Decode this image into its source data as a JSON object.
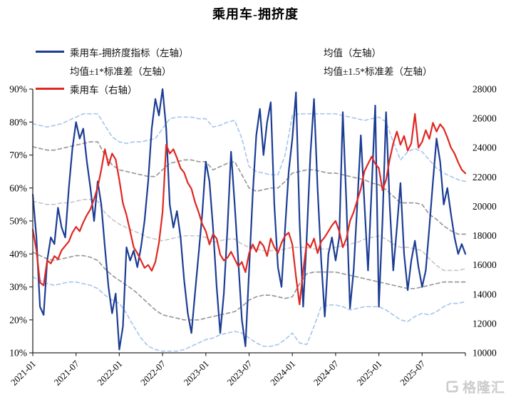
{
  "title": "乘用车-拥挤度",
  "watermark": {
    "brand": "格隆汇",
    "icon": "gelonghui-logo"
  },
  "colors": {
    "navy": "#1c3d94",
    "red": "#e02722",
    "gray": "#999999",
    "lightgray": "#c9c9c9",
    "lightblue": "#aac7ec",
    "axis": "#2b2b2b",
    "watermark": "#cccccc"
  },
  "chart_data": {
    "type": "line",
    "title": "乘用车-拥挤度",
    "x_range_months": [
      0,
      60
    ],
    "x_start_label": "2021-01",
    "x_ticks": {
      "label_months": [
        0,
        6,
        12,
        18,
        24,
        30,
        36,
        42,
        48,
        54
      ],
      "labels": [
        "2021-01",
        "2021-07",
        "2022-01",
        "2022-07",
        "2023-01",
        "2023-07",
        "2024-01",
        "2024-07",
        "2025-01",
        "2025-07"
      ],
      "tick_months": [
        0,
        6,
        12,
        18,
        24,
        30,
        36,
        42,
        48,
        54,
        60
      ]
    },
    "left_axis": {
      "min": 10,
      "max": 90,
      "tick_values": [
        10,
        20,
        30,
        40,
        50,
        60,
        70,
        80,
        90
      ],
      "tick_labels": [
        "10%",
        "20%",
        "30%",
        "40%",
        "50%",
        "60%",
        "70%",
        "80%",
        "90%"
      ]
    },
    "right_axis": {
      "min": 10000,
      "max": 28000,
      "tick_values": [
        10000,
        12000,
        14000,
        16000,
        18000,
        20000,
        22000,
        24000,
        26000,
        28000
      ],
      "tick_labels": [
        "10000",
        "12000",
        "14000",
        "16000",
        "18000",
        "20000",
        "22000",
        "24000",
        "26000",
        "28000"
      ]
    },
    "legend": [
      {
        "id": "indicator",
        "label": "乘用车-拥挤度指标（左轴）",
        "color": "navy",
        "style": "solid"
      },
      {
        "id": "mean",
        "label": "均值（左轴）",
        "color": "lightgray",
        "style": "dashed"
      },
      {
        "id": "band1",
        "label": "均值±1*标准差（左轴）",
        "color": "gray",
        "style": "dashed"
      },
      {
        "id": "band15",
        "label": "均值±1.5*标准差（左轴）",
        "color": "lightblue",
        "style": "dashed"
      },
      {
        "id": "vehicle",
        "label": "乘用车（右轴）",
        "color": "red",
        "style": "solid"
      }
    ],
    "series": [
      {
        "id": "upper15",
        "name": "均值+1.5*标准差（左轴）",
        "axis": "left",
        "color": "lightblue",
        "dash": true,
        "width": 1.7,
        "values": [
          79.5,
          79,
          78.5,
          79,
          79.5,
          80.5,
          81.5,
          82.5,
          82.5,
          82.5,
          79,
          75.5,
          74,
          73.5,
          74,
          74,
          74.5,
          75,
          78,
          81,
          81.5,
          81.5,
          81.5,
          81,
          81,
          78.5,
          79,
          80,
          80.5,
          75,
          66.5,
          65,
          64.5,
          64,
          64,
          70,
          82,
          82.5,
          82.5,
          82.5,
          82.5,
          82.5,
          82.5,
          82,
          81.5,
          81,
          80.5,
          81,
          81.5,
          80,
          74,
          68.5,
          71,
          72,
          71,
          68.5,
          66,
          64.5,
          63.5,
          62.5,
          62
        ]
      },
      {
        "id": "lower15",
        "name": "均值-1.5*标准差（左轴）",
        "axis": "left",
        "color": "lightblue",
        "dash": true,
        "width": 1.7,
        "values": [
          33,
          32,
          31,
          30.5,
          31,
          31.5,
          31.5,
          31,
          30.5,
          29.5,
          27.5,
          26,
          25,
          22,
          18,
          14.5,
          12,
          11,
          10.5,
          10.5,
          10.5,
          11,
          12,
          13,
          14,
          14.5,
          15.5,
          16,
          16.5,
          16,
          14.5,
          13,
          12,
          12,
          12.5,
          14,
          16,
          13,
          12.5,
          18,
          24,
          24.5,
          24.5,
          24,
          23,
          23.5,
          24,
          24,
          24,
          23,
          21.5,
          20,
          19.5,
          21,
          22,
          21.5,
          22.5,
          24,
          25,
          25,
          25.5
        ]
      },
      {
        "id": "upper1",
        "name": "均值+1*标准差（左轴）",
        "axis": "left",
        "color": "gray",
        "dash": true,
        "width": 1.7,
        "values": [
          72.5,
          72,
          71.5,
          71.5,
          72,
          72.5,
          73,
          73.5,
          74,
          74,
          70,
          67,
          65.5,
          65,
          64.5,
          64,
          63.5,
          63.5,
          65.5,
          67.5,
          68,
          68.5,
          68.5,
          68,
          68,
          65.5,
          66.5,
          67.5,
          68,
          64,
          60,
          59,
          59.5,
          60,
          60,
          62,
          64.5,
          65,
          65.5,
          65.5,
          65,
          64.5,
          64.5,
          64,
          63.5,
          63,
          62.5,
          61.5,
          61,
          59.5,
          57.5,
          55.5,
          55.5,
          55.5,
          55,
          52,
          50.5,
          48.5,
          47,
          46,
          46
        ]
      },
      {
        "id": "lower1",
        "name": "均值-1*标准差（左轴）",
        "axis": "left",
        "color": "gray",
        "dash": true,
        "width": 1.7,
        "values": [
          40.5,
          39.5,
          38.5,
          38,
          38.5,
          39,
          39.5,
          39.5,
          39,
          38,
          35.5,
          33.5,
          32,
          30.5,
          29,
          27,
          25,
          23,
          21.5,
          21,
          20.5,
          20,
          20,
          20,
          20.5,
          21,
          21.5,
          22,
          22.5,
          24,
          26,
          27,
          27.5,
          27.5,
          27,
          26.5,
          27,
          31,
          34,
          34.5,
          34.5,
          34.5,
          34.5,
          34,
          33.5,
          33,
          32.5,
          32,
          31.5,
          31,
          30.5,
          30,
          29.5,
          29.5,
          30,
          30.5,
          31,
          31.5,
          31.5,
          31.5,
          31.5
        ]
      },
      {
        "id": "mean",
        "name": "均值（左轴）",
        "axis": "left",
        "color": "lightgray",
        "dash": true,
        "width": 1.7,
        "values": [
          56,
          55.5,
          55,
          55,
          55.5,
          55.5,
          56,
          56.5,
          56.5,
          56,
          52.5,
          50.5,
          49,
          48,
          47,
          46,
          45,
          44.5,
          44,
          44.5,
          45,
          45.5,
          45.5,
          45.5,
          45,
          43.5,
          44,
          44.5,
          44.5,
          43,
          42,
          41.5,
          41,
          41,
          41,
          41.5,
          42,
          42,
          42,
          41.5,
          41.5,
          41.5,
          42,
          42.5,
          43,
          43.5,
          44.5,
          45,
          45.5,
          44.5,
          43,
          42,
          42,
          41.5,
          41,
          38.5,
          36.5,
          35,
          35,
          35,
          35.5
        ]
      },
      {
        "id": "indicator",
        "name": "乘用车-拥挤度指标（左轴）",
        "axis": "left",
        "color": "navy",
        "dash": false,
        "width": 2.2,
        "values": [
          58,
          45,
          24,
          21.5,
          38,
          45,
          43,
          54,
          48,
          45,
          60,
          72,
          80,
          75,
          78,
          68,
          60,
          50,
          62,
          55,
          42,
          30,
          22,
          28,
          11,
          18,
          42,
          38,
          41,
          36,
          42,
          50,
          62,
          78,
          87,
          82,
          90,
          78,
          55,
          48,
          53,
          45,
          32,
          22,
          16,
          28,
          40,
          52,
          68,
          62,
          48,
          30,
          16,
          28,
          48,
          71,
          55,
          38,
          20,
          12,
          35,
          58,
          76,
          84,
          70,
          80,
          86,
          55,
          36,
          30,
          48,
          65,
          75,
          89,
          50,
          24,
          45,
          70,
          87,
          60,
          38,
          21,
          40,
          45,
          38,
          45,
          83,
          55,
          23.5,
          35,
          55,
          76,
          55,
          35,
          60,
          85,
          24,
          50,
          83,
          55,
          35,
          48,
          61.5,
          40,
          29,
          38,
          44,
          36,
          30,
          35,
          48,
          62,
          75,
          68,
          55,
          60,
          52,
          45,
          40,
          43,
          40
        ]
      },
      {
        "id": "vehicle",
        "name": "乘用车（右轴）",
        "axis": "right",
        "color": "red",
        "dash": false,
        "width": 2.2,
        "values": [
          18400,
          17000,
          14800,
          14600,
          16300,
          16100,
          16600,
          16400,
          17000,
          17300,
          17600,
          18200,
          18600,
          18300,
          18900,
          19400,
          19800,
          20500,
          21300,
          22500,
          23900,
          22800,
          23600,
          23200,
          21800,
          20200,
          19400,
          18300,
          17200,
          16800,
          16300,
          15800,
          16000,
          15600,
          16200,
          17500,
          19600,
          24200,
          23600,
          23900,
          23300,
          22600,
          22300,
          21600,
          21200,
          20300,
          19600,
          18800,
          18300,
          17400,
          18100,
          17800,
          16700,
          16300,
          16500,
          16900,
          16400,
          15900,
          16200,
          15500,
          16800,
          17400,
          16900,
          17600,
          17300,
          16600,
          17800,
          17200,
          16800,
          17500,
          18000,
          18200,
          17400,
          15200,
          13300,
          15600,
          17500,
          17200,
          17800,
          16800,
          17600,
          17900,
          18300,
          18700,
          19000,
          18300,
          17200,
          17800,
          19000,
          19600,
          20400,
          21200,
          22400,
          22900,
          23400,
          22900,
          22600,
          21100,
          21800,
          23200,
          24300,
          25100,
          24200,
          24800,
          23800,
          24300,
          26300,
          24000,
          24400,
          25200,
          24600,
          25700,
          25100,
          25600,
          25300,
          24700,
          24000,
          23600,
          23000,
          22500,
          22250
        ]
      }
    ],
    "legend_position": "top",
    "grid": false
  }
}
